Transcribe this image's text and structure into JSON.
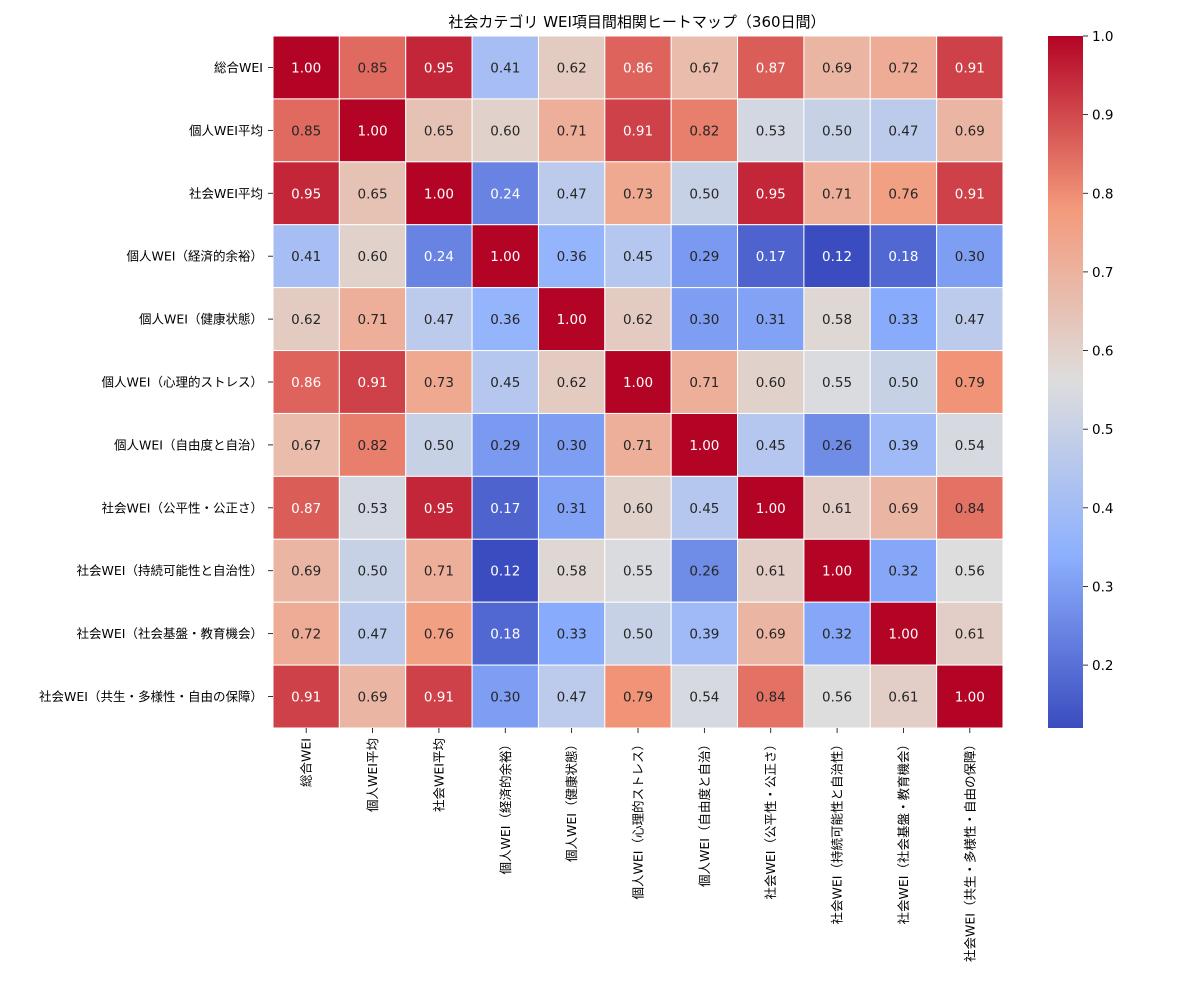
{
  "chart_data": {
    "type": "heatmap",
    "title": "社会カテゴリ WEI項目間相関ヒートマップ（360日間）",
    "labels": [
      "総合WEI",
      "個人WEI平均",
      "社会WEI平均",
      "個人WEI（経済的余裕）",
      "個人WEI（健康状態）",
      "個人WEI（心理的ストレス）",
      "個人WEI（自由度と自治）",
      "社会WEI（公平性・公正さ）",
      "社会WEI（持続可能性と自治性）",
      "社会WEI（社会基盤・教育機会）",
      "社会WEI（共生・多様性・自由の保障）"
    ],
    "matrix": [
      [
        1.0,
        0.85,
        0.95,
        0.41,
        0.62,
        0.86,
        0.67,
        0.87,
        0.69,
        0.72,
        0.91
      ],
      [
        0.85,
        1.0,
        0.65,
        0.6,
        0.71,
        0.91,
        0.82,
        0.53,
        0.5,
        0.47,
        0.69
      ],
      [
        0.95,
        0.65,
        1.0,
        0.24,
        0.47,
        0.73,
        0.5,
        0.95,
        0.71,
        0.76,
        0.91
      ],
      [
        0.41,
        0.6,
        0.24,
        1.0,
        0.36,
        0.45,
        0.29,
        0.17,
        0.12,
        0.18,
        0.3
      ],
      [
        0.62,
        0.71,
        0.47,
        0.36,
        1.0,
        0.62,
        0.3,
        0.31,
        0.58,
        0.33,
        0.47
      ],
      [
        0.86,
        0.91,
        0.73,
        0.45,
        0.62,
        1.0,
        0.71,
        0.6,
        0.55,
        0.5,
        0.79
      ],
      [
        0.67,
        0.82,
        0.5,
        0.29,
        0.3,
        0.71,
        1.0,
        0.45,
        0.26,
        0.39,
        0.54
      ],
      [
        0.87,
        0.53,
        0.95,
        0.17,
        0.31,
        0.6,
        0.45,
        1.0,
        0.61,
        0.69,
        0.84
      ],
      [
        0.69,
        0.5,
        0.71,
        0.12,
        0.58,
        0.55,
        0.26,
        0.61,
        1.0,
        0.32,
        0.56
      ],
      [
        0.72,
        0.47,
        0.76,
        0.18,
        0.33,
        0.5,
        0.39,
        0.69,
        0.32,
        1.0,
        0.61
      ],
      [
        0.91,
        0.69,
        0.91,
        0.3,
        0.47,
        0.79,
        0.54,
        0.84,
        0.56,
        0.61,
        1.0
      ]
    ],
    "value_format": "0.00",
    "colormap": "coolwarm",
    "colorbar": {
      "min": 0.12,
      "max": 1.0,
      "ticks": [
        "0.2",
        "0.3",
        "0.4",
        "0.5",
        "0.6",
        "0.7",
        "0.8",
        "0.9",
        "1.0"
      ]
    }
  }
}
